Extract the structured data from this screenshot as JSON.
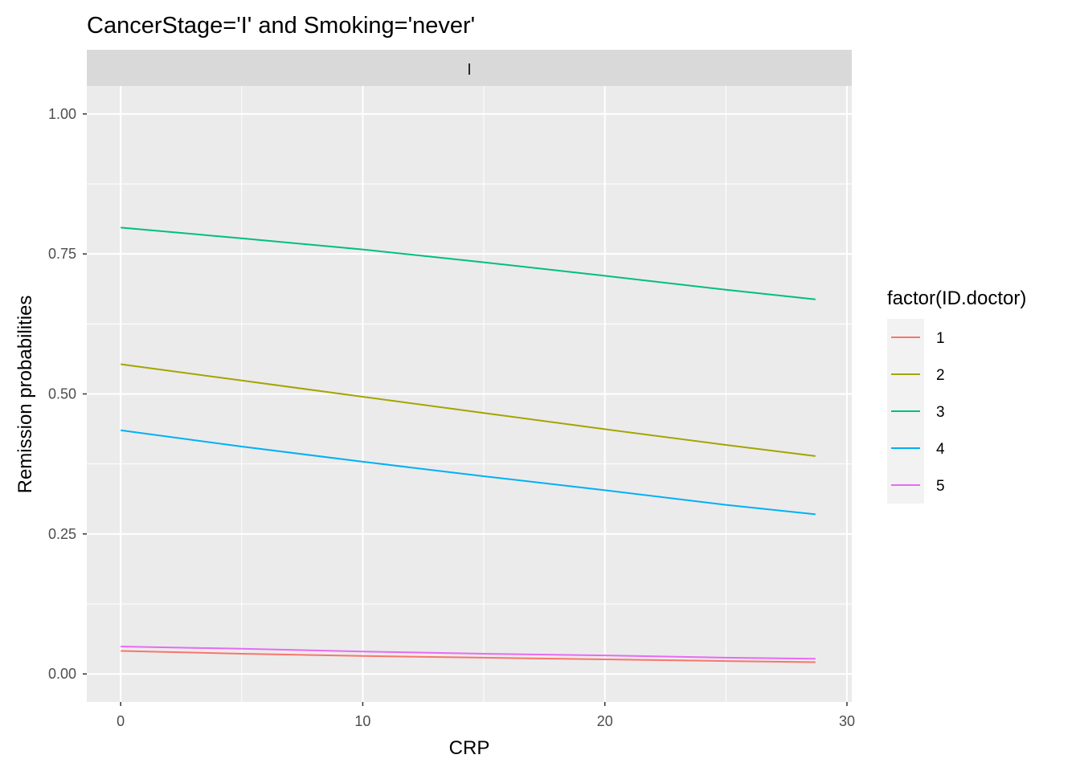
{
  "chart_data": {
    "type": "line",
    "title": "CancerStage='I' and Smoking='never'",
    "facet_label": "I",
    "xlabel": "CRP",
    "ylabel": "Remission probabilities",
    "xlim": [
      -1.4,
      30.2
    ],
    "ylim": [
      -0.05,
      1.05
    ],
    "x_ticks": [
      0,
      10,
      20,
      30
    ],
    "x_tick_labels": [
      "0",
      "10",
      "20",
      "30"
    ],
    "y_ticks": [
      0,
      0.25,
      0.5,
      0.75,
      1
    ],
    "y_tick_labels": [
      "0.00",
      "0.25",
      "0.50",
      "0.75",
      "1.00"
    ],
    "grid": true,
    "legend": {
      "title": "factor(ID.doctor)",
      "position": "right"
    },
    "x": [
      0,
      5,
      10,
      15,
      20,
      25,
      28.7
    ],
    "series": [
      {
        "name": "1",
        "color": "#F8766D",
        "values": [
          0.041,
          0.036,
          0.032,
          0.029,
          0.026,
          0.023,
          0.021
        ]
      },
      {
        "name": "2",
        "color": "#A3A500",
        "values": [
          0.553,
          0.524,
          0.495,
          0.466,
          0.437,
          0.409,
          0.389
        ]
      },
      {
        "name": "3",
        "color": "#00BF7D",
        "values": [
          0.797,
          0.778,
          0.758,
          0.735,
          0.711,
          0.686,
          0.669
        ]
      },
      {
        "name": "4",
        "color": "#00B0F6",
        "values": [
          0.435,
          0.406,
          0.379,
          0.353,
          0.328,
          0.302,
          0.285
        ]
      },
      {
        "name": "5",
        "color": "#E76BF3",
        "values": [
          0.049,
          0.045,
          0.04,
          0.036,
          0.033,
          0.029,
          0.027
        ]
      }
    ]
  }
}
